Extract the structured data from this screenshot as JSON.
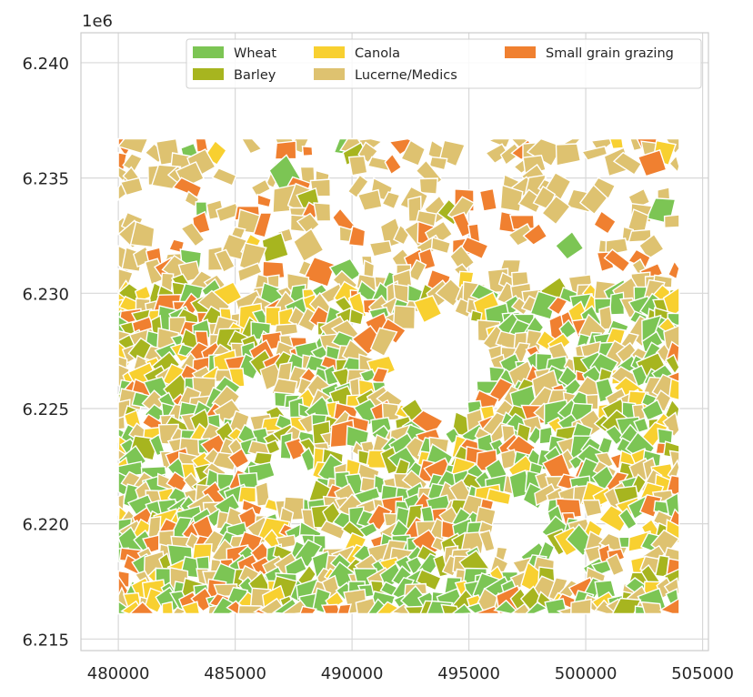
{
  "chart_data": {
    "type": "choropleth-map",
    "x_axis": {
      "ticks": [
        "480000",
        "485000",
        "490000",
        "495000",
        "500000",
        "505000"
      ],
      "tick_values": [
        480000,
        485000,
        490000,
        495000,
        500000,
        505000
      ],
      "range": [
        478400,
        505250
      ]
    },
    "y_axis": {
      "ticks": [
        "6.215",
        "6.220",
        "6.225",
        "6.230",
        "6.235",
        "6.240"
      ],
      "tick_values": [
        6.215,
        6.22,
        6.225,
        6.23,
        6.235,
        6.24
      ],
      "range": [
        6.2145,
        6.2413
      ],
      "offset_label": "1e6"
    },
    "grid": true,
    "legend": {
      "placement": "top-right",
      "entries": [
        {
          "label": "Wheat",
          "color": "#7cc554"
        },
        {
          "label": "Barley",
          "color": "#a7b51f"
        },
        {
          "label": "Canola",
          "color": "#f8d030"
        },
        {
          "label": "Lucerne/Medics",
          "color": "#dec270"
        },
        {
          "label": "Small grain grazing",
          "color": "#f08030"
        }
      ]
    },
    "extent": {
      "x": [
        480000,
        504000
      ],
      "y": [
        6.2161,
        6.2367
      ]
    }
  }
}
